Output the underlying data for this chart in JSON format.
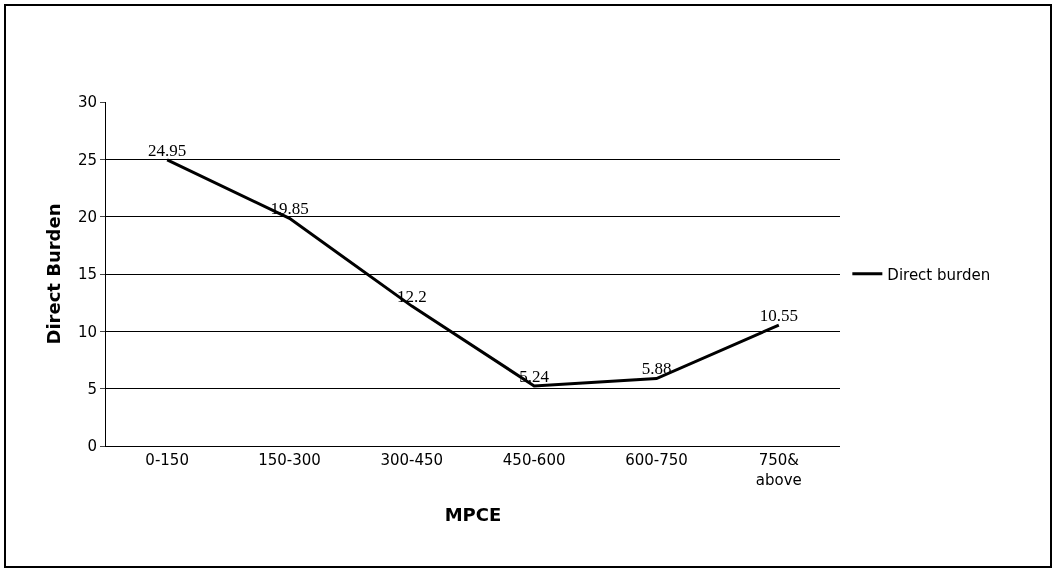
{
  "chart_data": {
    "type": "line",
    "xlabel": "MPCE",
    "ylabel": "Direct Burden",
    "categories": [
      "0-150",
      "150-300",
      "300-450",
      "450-600",
      "600-750",
      "750& above"
    ],
    "series": [
      {
        "name": "Direct burden",
        "color": "#000000",
        "values": [
          24.95,
          19.85,
          12.2,
          5.24,
          5.88,
          10.55
        ]
      }
    ],
    "ylim": [
      0,
      30
    ],
    "yticks": [
      0,
      5,
      10,
      15,
      20,
      25,
      30
    ],
    "grid": "y",
    "legend": "right",
    "data_labels": true,
    "marker": "none",
    "line_style": "solid"
  }
}
